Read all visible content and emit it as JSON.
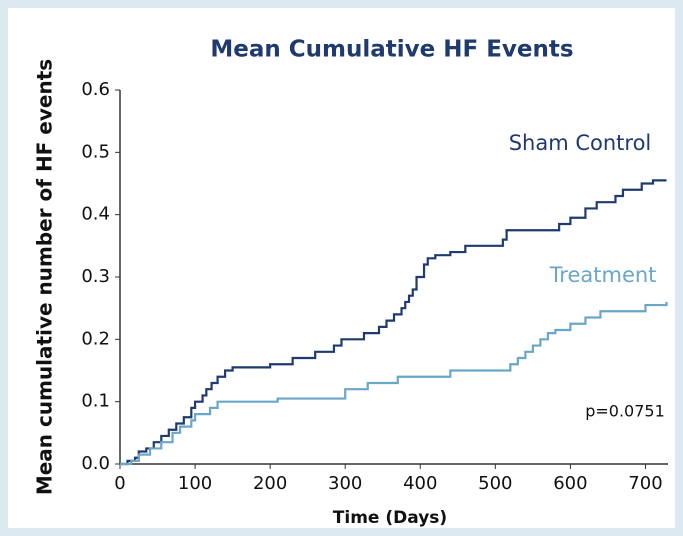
{
  "chart_data": {
    "type": "step-line",
    "title": "Mean Cumulative HF Events",
    "x_label": "Time (Days)",
    "y_label": "Mean cumulative number of HF events",
    "annotation": "p=0.0751",
    "xlim": [
      0,
      730
    ],
    "ylim": [
      0,
      0.6
    ],
    "xticks": [
      0,
      100,
      200,
      300,
      400,
      500,
      600,
      700
    ],
    "yticks": [
      {
        "value": 0,
        "label": "0.0"
      },
      0.1,
      0.2,
      0.3,
      0.4,
      0.5,
      0.6
    ],
    "series": [
      {
        "name": "Sham Control",
        "color": "#1f3a6e",
        "x": [
          0,
          10,
          20,
          25,
          35,
          45,
          55,
          65,
          75,
          85,
          95,
          100,
          110,
          115,
          122,
          130,
          140,
          150,
          200,
          230,
          260,
          285,
          295,
          325,
          345,
          355,
          365,
          375,
          380,
          385,
          390,
          395,
          405,
          410,
          420,
          440,
          460,
          510,
          515,
          585,
          600,
          620,
          635,
          660,
          670,
          695,
          710,
          728
        ],
        "values": [
          0,
          0.005,
          0.01,
          0.02,
          0.025,
          0.035,
          0.045,
          0.055,
          0.065,
          0.075,
          0.09,
          0.1,
          0.11,
          0.12,
          0.13,
          0.14,
          0.15,
          0.155,
          0.16,
          0.17,
          0.18,
          0.19,
          0.2,
          0.21,
          0.22,
          0.23,
          0.24,
          0.25,
          0.26,
          0.27,
          0.28,
          0.3,
          0.32,
          0.33,
          0.335,
          0.34,
          0.35,
          0.36,
          0.375,
          0.385,
          0.395,
          0.41,
          0.42,
          0.43,
          0.44,
          0.45,
          0.455,
          0.455
        ]
      },
      {
        "name": "Treatment",
        "color": "#6aa6c8",
        "x": [
          0,
          15,
          25,
          40,
          55,
          70,
          80,
          95,
          100,
          120,
          130,
          210,
          300,
          330,
          370,
          440,
          520,
          530,
          540,
          550,
          560,
          570,
          580,
          600,
          620,
          640,
          700,
          728
        ],
        "values": [
          0,
          0.005,
          0.015,
          0.025,
          0.035,
          0.05,
          0.06,
          0.07,
          0.08,
          0.09,
          0.1,
          0.105,
          0.12,
          0.13,
          0.14,
          0.15,
          0.16,
          0.17,
          0.18,
          0.19,
          0.2,
          0.21,
          0.215,
          0.225,
          0.235,
          0.245,
          0.255,
          0.26
        ]
      }
    ]
  }
}
